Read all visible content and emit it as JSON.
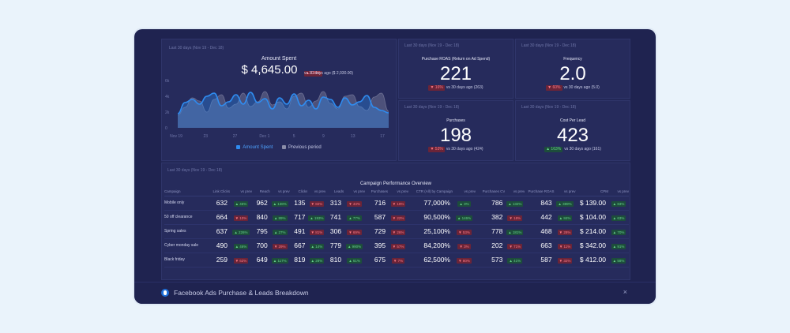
{
  "dashboard_title": "Facebook Ads Purchase & Leads Breakdown",
  "amount_panel": {
    "period": "Last 30 days (Nov 19 - Dec 18)",
    "title": "Amount Spent",
    "value": "$ 4,645.00",
    "change": "▲ 129%",
    "compare": "vs 30 days ago ($ 2,030.00)",
    "legend_current": "Amount Spent",
    "legend_previous": "Previous period"
  },
  "chart_data": {
    "type": "area",
    "x_ticks": [
      "Nov 19",
      "23",
      "27",
      "Dec 1",
      "5",
      "9",
      "13",
      "17"
    ],
    "y_ticks": [
      "6k",
      "4k",
      "2k",
      "0"
    ],
    "ylim": [
      0,
      6000
    ],
    "series": [
      {
        "name": "Amount Spent",
        "color": "#2f8cf0",
        "values": [
          1800,
          3200,
          3600,
          3000,
          4000,
          4400,
          2800,
          3300,
          4200,
          3000,
          4500,
          3200,
          3700,
          2400,
          3800,
          3000,
          4300,
          2800,
          3500,
          2400,
          3900,
          3600,
          2600,
          3800,
          2900,
          3300,
          4100,
          2600,
          2200,
          1900
        ]
      },
      {
        "name": "Previous period",
        "color": "#6e7194",
        "values": [
          1600,
          2600,
          3800,
          3400,
          2000,
          3600,
          4200,
          2500,
          3000,
          4400,
          2700,
          3300,
          4600,
          2900,
          3300,
          2400,
          4000,
          4400,
          2600,
          3400,
          4600,
          3100,
          2400,
          4000,
          4200,
          2700,
          2200,
          3900,
          4400,
          2100
        ]
      }
    ]
  },
  "kpis": [
    {
      "period": "Last 30 days (Nov 19 - Dec 18)",
      "title": "Purchase ROAS (Return on Ad Spend)",
      "value": "221",
      "change": "▼ 16%",
      "direction": "down",
      "compare": "vs 30 days ago (263)"
    },
    {
      "period": "Last 30 days (Nov 19 - Dec 18)",
      "title": "Frequency",
      "value": "2.0",
      "change": "▼ 60%",
      "direction": "down",
      "compare": "vs 30 days ago (5.0)"
    },
    {
      "period": "Last 30 days (Nov 19 - Dec 18)",
      "title": "Purchases",
      "value": "198",
      "change": "▼ 53%",
      "direction": "down",
      "compare": "vs 30 days ago (424)"
    },
    {
      "period": "Last 30 days (Nov 19 - Dec 18)",
      "title": "Cost Per Lead",
      "value": "423",
      "change": "▲ 163%",
      "direction": "up",
      "compare": "vs 30 days ago (161)"
    }
  ],
  "table": {
    "period": "Last 30 days (Nov 19 - Dec 18)",
    "title": "Campaign Performance Overview",
    "columns": [
      "Campaign",
      "Link Clicks",
      "vs prev",
      "Reach",
      "vs prev",
      "Clicks",
      "vs prev",
      "Leads",
      "vs prev",
      "Purchases",
      "vs prev",
      "CTR (All) by Campaign",
      "vs prev",
      "Purchases CV",
      "vs prev",
      "Purchase ROAS",
      "vs prev",
      "CPM",
      "vs prev"
    ],
    "rows": [
      {
        "cells": [
          "Mobile only",
          "632",
          "▲ 46%",
          "962",
          "▲ 138%",
          "135",
          "▼ 82%",
          "313",
          "▼ 44%",
          "716",
          "▼ 19%",
          "77,000%",
          "▲ 3%",
          "786",
          "▲ 132%",
          "843",
          "▲ 389%",
          "$ 139.00",
          "▲ 83%"
        ],
        "dirs": [
          "up",
          "up",
          "down",
          "down",
          "down",
          "up",
          "up",
          "up",
          "up"
        ]
      },
      {
        "cells": [
          "50 off clearance",
          "664",
          "▼ 10%",
          "840",
          "▲ 89%",
          "717",
          "▲ 193%",
          "741",
          "▲ 77%",
          "587",
          "▼ 22%",
          "90,500%",
          "▲ 146%",
          "382",
          "▼ 18%",
          "442",
          "▲ 84%",
          "$ 104.00",
          "▲ 63%"
        ],
        "dirs": [
          "down",
          "up",
          "up",
          "up",
          "down",
          "up",
          "down",
          "up",
          "up"
        ]
      },
      {
        "cells": [
          "Spring sales",
          "637",
          "▲ 226%",
          "795",
          "▲ 27%",
          "491",
          "▼ 81%",
          "306",
          "▼ 69%",
          "729",
          "▼ 26%",
          "25,100%",
          "▼ 53%",
          "778",
          "▲ 181%",
          "468",
          "▼ 28%",
          "$ 214.00",
          "▲ 70%"
        ],
        "dirs": [
          "up",
          "up",
          "down",
          "down",
          "down",
          "down",
          "up",
          "down",
          "up"
        ]
      },
      {
        "cells": [
          "Cyber monday sale",
          "490",
          "▲ 46%",
          "700",
          "▼ 29%",
          "667",
          "▲ 14%",
          "779",
          "▲ 990%",
          "395",
          "▼ 57%",
          "84,200%",
          "▼ 3%",
          "202",
          "▼ 71%",
          "663",
          "▼ 11%",
          "$ 342.00",
          "▲ 91%"
        ],
        "dirs": [
          "up",
          "down",
          "up",
          "up",
          "down",
          "down",
          "down",
          "down",
          "up"
        ]
      },
      {
        "cells": [
          "Black friday",
          "259",
          "▼ 62%",
          "649",
          "▲ 117%",
          "819",
          "▲ 28%",
          "810",
          "▲ 61%",
          "675",
          "▼ 7%",
          "62,500%",
          "▼ 80%",
          "573",
          "▲ 41%",
          "587",
          "▼ 32%",
          "$ 412.00",
          "▲ 58%"
        ],
        "dirs": [
          "down",
          "up",
          "up",
          "up",
          "down",
          "down",
          "up",
          "down",
          "up"
        ]
      }
    ]
  }
}
